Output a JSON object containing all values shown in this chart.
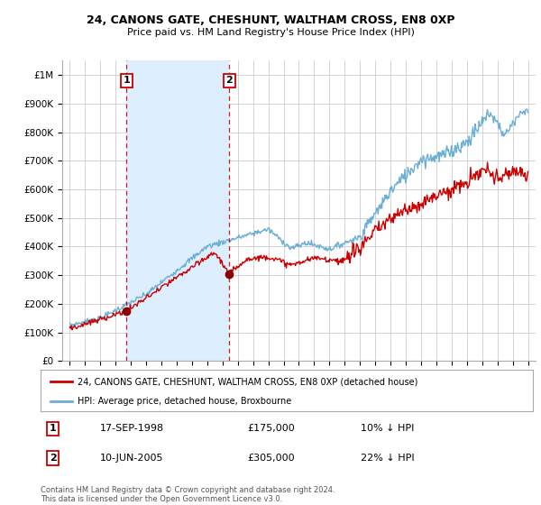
{
  "title1": "24, CANONS GATE, CHESHUNT, WALTHAM CROSS, EN8 0XP",
  "title2": "Price paid vs. HM Land Registry's House Price Index (HPI)",
  "ylabel_ticks": [
    "£0",
    "£100K",
    "£200K",
    "£300K",
    "£400K",
    "£500K",
    "£600K",
    "£700K",
    "£800K",
    "£900K",
    "£1M"
  ],
  "ytick_values": [
    0,
    100000,
    200000,
    300000,
    400000,
    500000,
    600000,
    700000,
    800000,
    900000,
    1000000
  ],
  "xlim": [
    1994.5,
    2025.5
  ],
  "ylim": [
    0,
    1050000
  ],
  "sale1_x": 1998.71,
  "sale1_y": 175000,
  "sale1_label": "1",
  "sale1_date": "17-SEP-1998",
  "sale1_price": "£175,000",
  "sale1_hpi": "10% ↓ HPI",
  "sale2_x": 2005.44,
  "sale2_y": 305000,
  "sale2_label": "2",
  "sale2_date": "10-JUN-2005",
  "sale2_price": "£305,000",
  "sale2_hpi": "22% ↓ HPI",
  "legend_line1": "24, CANONS GATE, CHESHUNT, WALTHAM CROSS, EN8 0XP (detached house)",
  "legend_line2": "HPI: Average price, detached house, Broxbourne",
  "footer": "Contains HM Land Registry data © Crown copyright and database right 2024.\nThis data is licensed under the Open Government Licence v3.0.",
  "hpi_color": "#6baed6",
  "price_color": "#cc0000",
  "sale_dot_color": "#8b0000",
  "vline_color": "#cc0000",
  "shade_color": "#ddeeff",
  "grid_color": "#cccccc",
  "bg_color": "#ffffff"
}
